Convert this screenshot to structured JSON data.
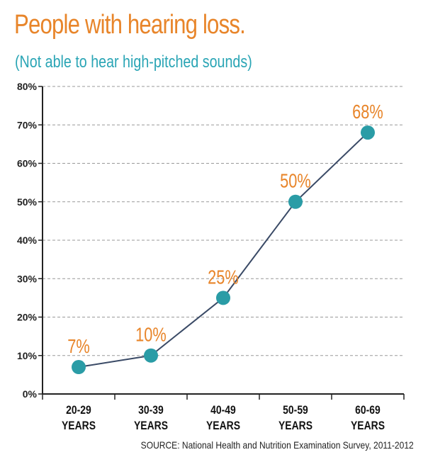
{
  "header": {
    "title": "People with hearing loss.",
    "subtitle": "(Not able to hear high-pitched sounds)"
  },
  "source": "SOURCE: National Health and Nutrition Examination Survey, 2011-2012",
  "colors": {
    "title": "#e8852a",
    "subtitle": "#2aa5b5",
    "point": "#2a9ca6",
    "line": "#3a4a66",
    "data_label": "#e8852a",
    "grid": "#999999"
  },
  "chart_data": {
    "type": "line",
    "categories": [
      [
        "20-29",
        "YEARS"
      ],
      [
        "30-39",
        "YEARS"
      ],
      [
        "40-49",
        "YEARS"
      ],
      [
        "50-59",
        "YEARS"
      ],
      [
        "60-69",
        "YEARS"
      ]
    ],
    "values": [
      7,
      10,
      25,
      50,
      68
    ],
    "data_labels": [
      "7%",
      "10%",
      "25%",
      "50%",
      "68%"
    ],
    "y_ticks": [
      "0%",
      "10%",
      "20%",
      "30%",
      "40%",
      "50%",
      "60%",
      "70%",
      "80%"
    ],
    "ylim": [
      0,
      80
    ],
    "grid": true,
    "grid_style": "dashed"
  }
}
